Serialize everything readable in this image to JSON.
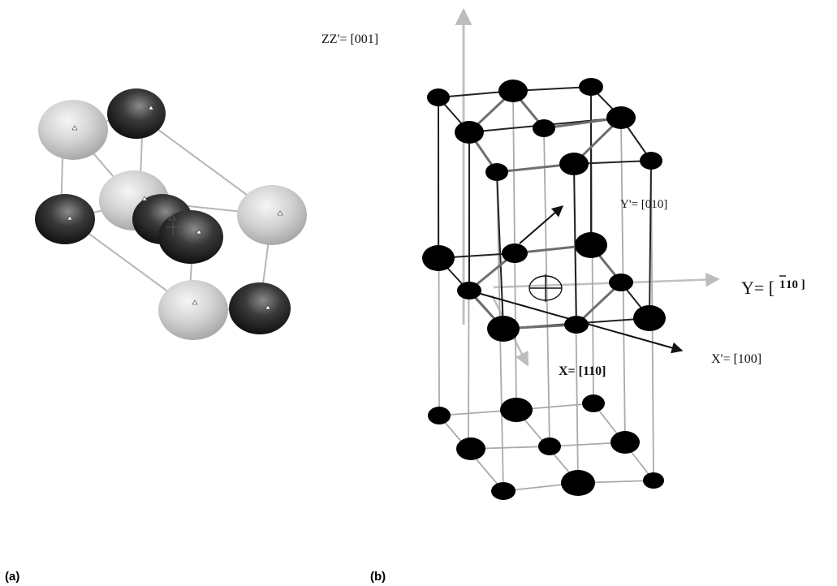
{
  "panel_a": {
    "caption": "(a)"
  },
  "panel_b": {
    "caption": "(b)",
    "axes": {
      "zz_prime": "ZZ'= [001]",
      "y_prime": "Y'= [010]",
      "y_prefix": "Y= [",
      "y_bar_digit": "1",
      "y_rest": "10 ]",
      "x_prime": "X'= [100]",
      "x": "X= [110]"
    }
  },
  "colors": {
    "light_atom": "#d9d9d9",
    "dark_atom": "#151515",
    "bond": "#aaaaaa",
    "black_atom": "#000000"
  }
}
